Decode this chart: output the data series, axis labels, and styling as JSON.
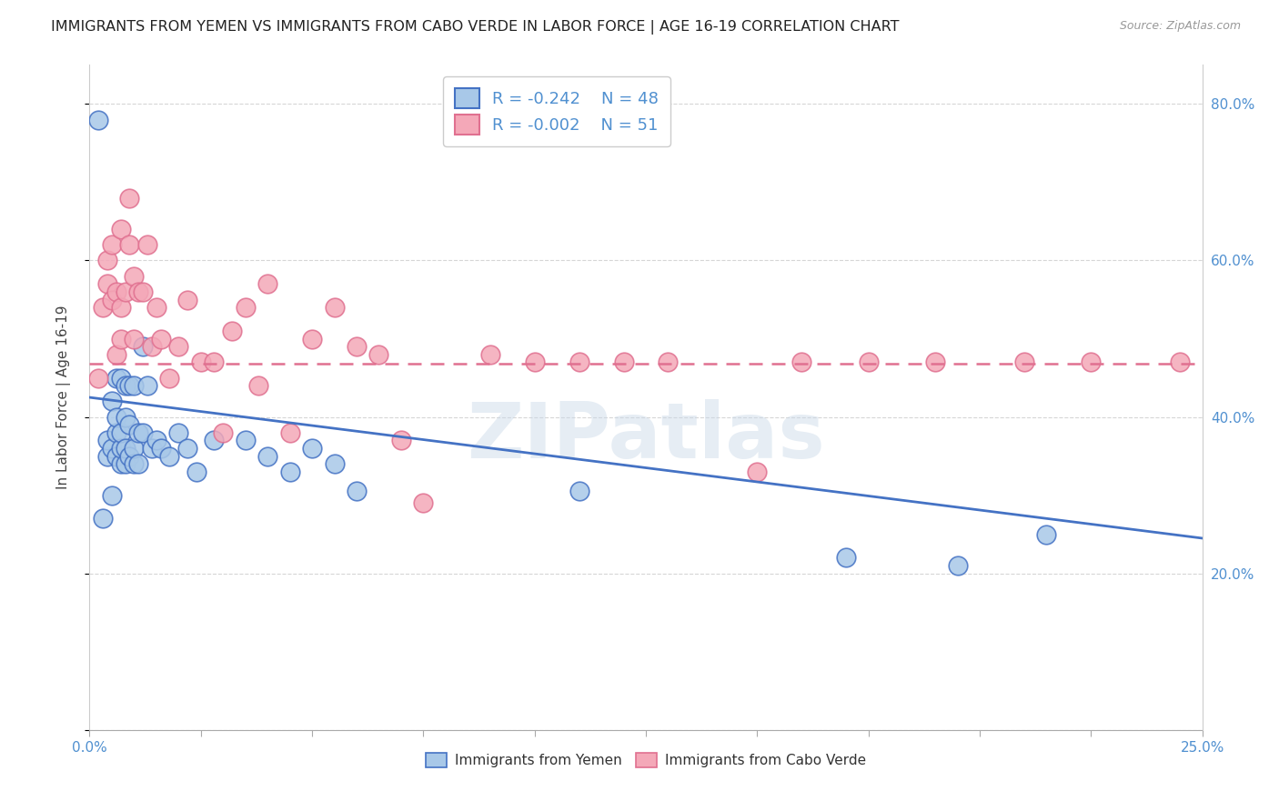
{
  "title": "IMMIGRANTS FROM YEMEN VS IMMIGRANTS FROM CABO VERDE IN LABOR FORCE | AGE 16-19 CORRELATION CHART",
  "source": "Source: ZipAtlas.com",
  "ylabel": "In Labor Force | Age 16-19",
  "xmin": 0.0,
  "xmax": 0.25,
  "ymin": 0.0,
  "ymax": 0.85,
  "xticks": [
    0.0,
    0.025,
    0.05,
    0.075,
    0.1,
    0.125,
    0.15,
    0.175,
    0.2,
    0.225,
    0.25
  ],
  "yticks": [
    0.0,
    0.2,
    0.4,
    0.6,
    0.8
  ],
  "ytick_labels_right": [
    "",
    "20.0%",
    "40.0%",
    "60.0%",
    "80.0%"
  ],
  "xtick_labels": [
    "0.0%",
    "",
    "",
    "",
    "",
    "",
    "",
    "",
    "",
    "",
    "25.0%"
  ],
  "legend_r_yemen": "-0.242",
  "legend_n_yemen": "48",
  "legend_r_cabo": "-0.002",
  "legend_n_cabo": "51",
  "color_yemen": "#a8c8e8",
  "color_cabo": "#f4a8b8",
  "color_trendline_yemen": "#4472c4",
  "color_trendline_cabo": "#e07090",
  "background_color": "#ffffff",
  "grid_color": "#cccccc",
  "watermark": "ZIPatlas",
  "yemen_x": [
    0.002,
    0.003,
    0.004,
    0.004,
    0.005,
    0.005,
    0.005,
    0.006,
    0.006,
    0.006,
    0.006,
    0.007,
    0.007,
    0.007,
    0.007,
    0.008,
    0.008,
    0.008,
    0.008,
    0.009,
    0.009,
    0.009,
    0.01,
    0.01,
    0.01,
    0.011,
    0.011,
    0.012,
    0.012,
    0.013,
    0.014,
    0.015,
    0.016,
    0.018,
    0.02,
    0.022,
    0.024,
    0.028,
    0.035,
    0.04,
    0.045,
    0.05,
    0.055,
    0.06,
    0.11,
    0.17,
    0.195,
    0.215
  ],
  "yemen_y": [
    0.78,
    0.27,
    0.35,
    0.37,
    0.3,
    0.36,
    0.42,
    0.35,
    0.38,
    0.4,
    0.45,
    0.34,
    0.36,
    0.38,
    0.45,
    0.34,
    0.36,
    0.4,
    0.44,
    0.35,
    0.39,
    0.44,
    0.34,
    0.36,
    0.44,
    0.34,
    0.38,
    0.38,
    0.49,
    0.44,
    0.36,
    0.37,
    0.36,
    0.35,
    0.38,
    0.36,
    0.33,
    0.37,
    0.37,
    0.35,
    0.33,
    0.36,
    0.34,
    0.305,
    0.305,
    0.22,
    0.21,
    0.25
  ],
  "cabo_x": [
    0.002,
    0.003,
    0.004,
    0.004,
    0.005,
    0.005,
    0.006,
    0.006,
    0.007,
    0.007,
    0.007,
    0.008,
    0.009,
    0.009,
    0.01,
    0.01,
    0.011,
    0.012,
    0.013,
    0.014,
    0.015,
    0.016,
    0.018,
    0.02,
    0.022,
    0.025,
    0.028,
    0.03,
    0.032,
    0.035,
    0.038,
    0.04,
    0.045,
    0.05,
    0.055,
    0.06,
    0.065,
    0.07,
    0.075,
    0.09,
    0.1,
    0.11,
    0.12,
    0.13,
    0.15,
    0.16,
    0.175,
    0.19,
    0.21,
    0.225,
    0.245
  ],
  "cabo_y": [
    0.45,
    0.54,
    0.57,
    0.6,
    0.55,
    0.62,
    0.48,
    0.56,
    0.5,
    0.54,
    0.64,
    0.56,
    0.62,
    0.68,
    0.5,
    0.58,
    0.56,
    0.56,
    0.62,
    0.49,
    0.54,
    0.5,
    0.45,
    0.49,
    0.55,
    0.47,
    0.47,
    0.38,
    0.51,
    0.54,
    0.44,
    0.57,
    0.38,
    0.5,
    0.54,
    0.49,
    0.48,
    0.37,
    0.29,
    0.48,
    0.47,
    0.47,
    0.47,
    0.47,
    0.33,
    0.47,
    0.47,
    0.47,
    0.47,
    0.47,
    0.47
  ],
  "trendline_yemen_x0": 0.0,
  "trendline_yemen_y0": 0.425,
  "trendline_yemen_x1": 0.25,
  "trendline_yemen_y1": 0.245,
  "trendline_cabo_x0": 0.0,
  "trendline_cabo_y0": 0.468,
  "trendline_cabo_x1": 0.25,
  "trendline_cabo_y1": 0.468
}
